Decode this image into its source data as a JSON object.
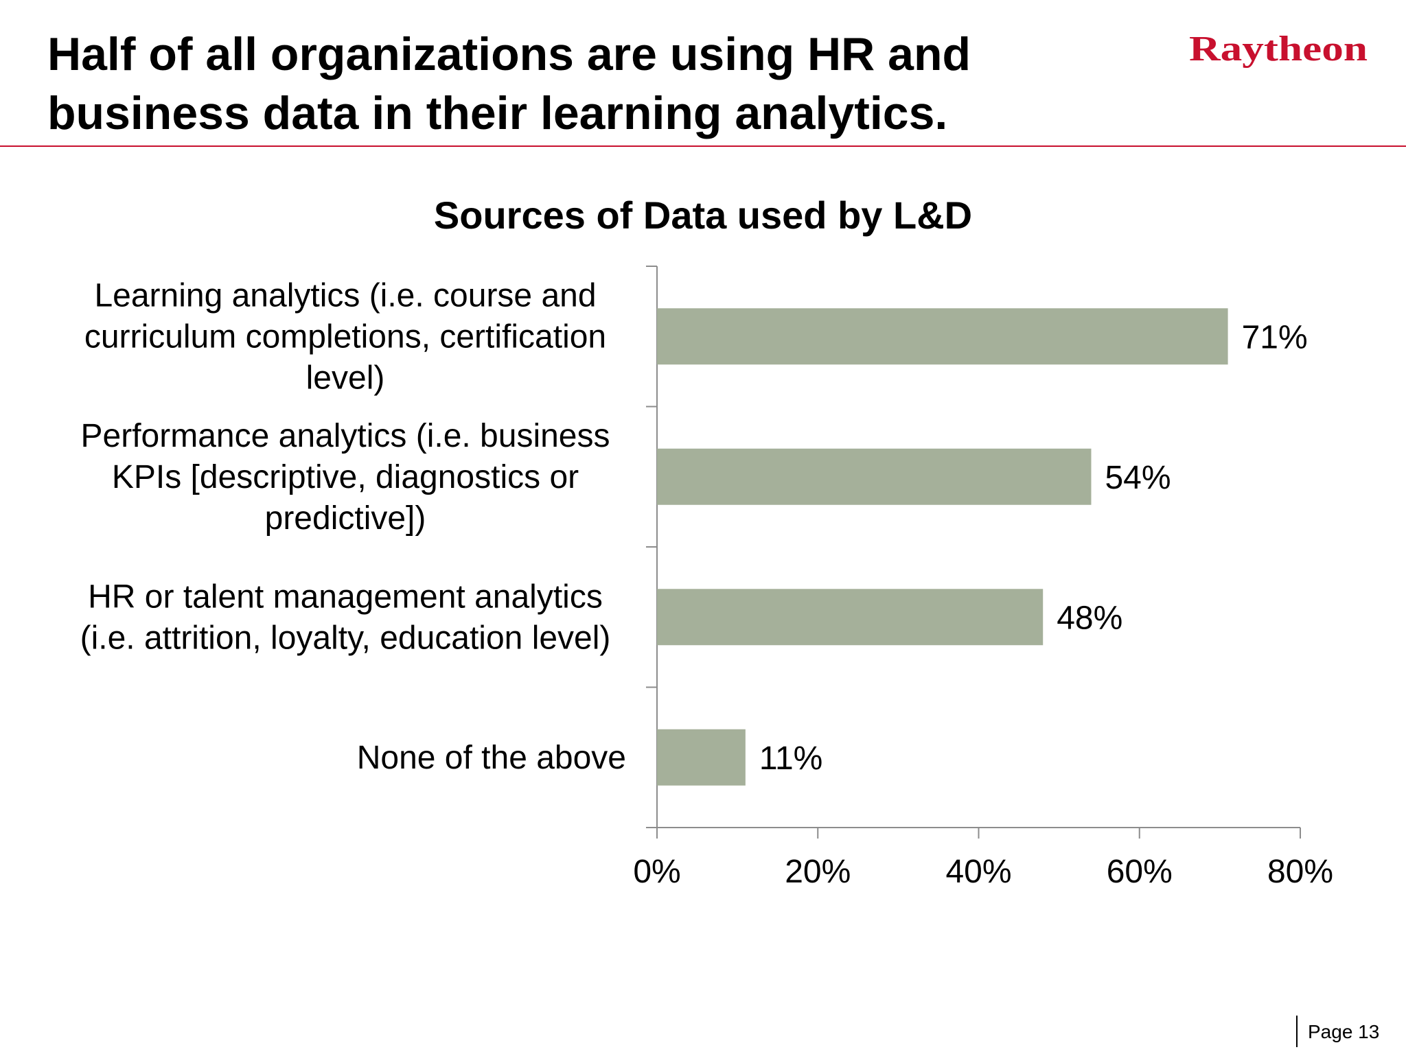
{
  "slide": {
    "title": "Half of all organizations are using HR and\nbusiness data in their learning analytics.",
    "logo_text": "Raytheon",
    "page_label": "Page 13"
  },
  "colors": {
    "bar": "#a5b09a",
    "accent": "#c8102e",
    "axis": "#8c8c8c"
  },
  "chart_data": {
    "type": "bar",
    "orientation": "horizontal",
    "title": "Sources of Data used by L&D",
    "categories": [
      "Learning analytics (i.e. course and curriculum completions, certification level)",
      "Performance analytics (i.e. business KPIs [descriptive, diagnostics or predictive])",
      "HR or talent management analytics (i.e. attrition, loyalty, education level)",
      "None of the above"
    ],
    "category_lines": [
      [
        "Learning analytics (i.e. course and",
        "curriculum completions, certification",
        "level)"
      ],
      [
        "Performance analytics (i.e. business",
        "KPIs [descriptive, diagnostics or",
        "predictive])"
      ],
      [
        "HR or talent management analytics",
        "(i.e. attrition, loyalty, education level)"
      ],
      [
        "None of the above"
      ]
    ],
    "values": [
      71,
      54,
      48,
      11
    ],
    "data_labels": [
      "71%",
      "54%",
      "48%",
      "11%"
    ],
    "xlim": [
      0,
      80
    ],
    "x_ticks": [
      0,
      20,
      40,
      60,
      80
    ],
    "x_tick_labels": [
      "0%",
      "20%",
      "40%",
      "60%",
      "80%"
    ],
    "xlabel": "",
    "ylabel": "",
    "grid": false,
    "legend": "none"
  }
}
